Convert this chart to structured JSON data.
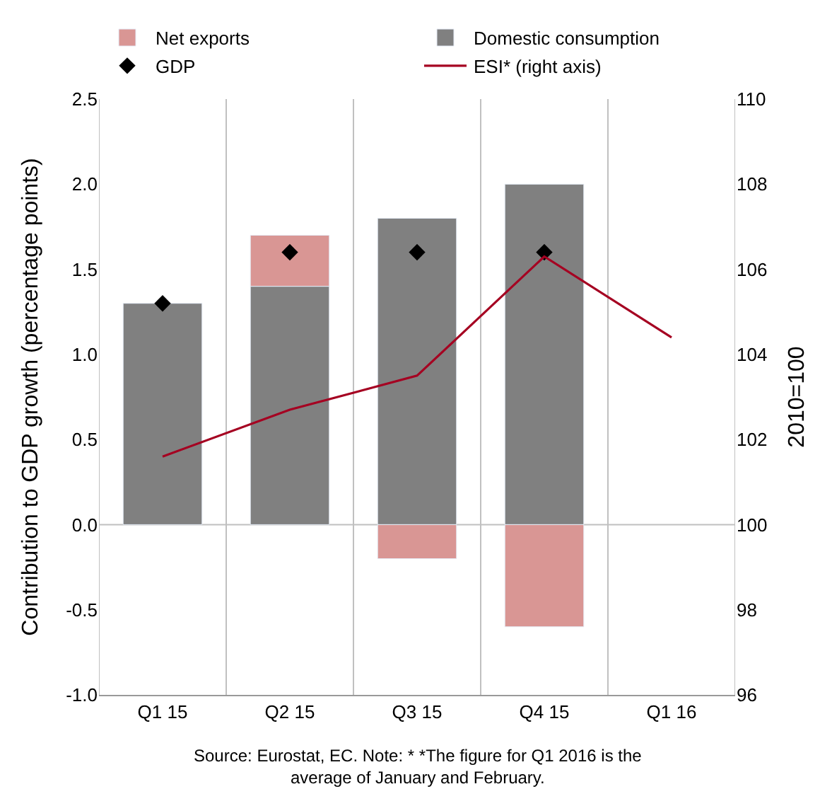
{
  "chart_data": {
    "type": "bar",
    "stacked": true,
    "categories": [
      "Q1 15",
      "Q2 15",
      "Q3 15",
      "Q4 15",
      "Q1 16"
    ],
    "ylabel": "Contribution to GDP growth (percentage points)",
    "y2label": "2010=100",
    "series": [
      {
        "name": "Domestic consumption",
        "color": "#808080",
        "values": [
          1.3,
          1.4,
          1.8,
          2.0,
          null
        ]
      },
      {
        "name": "Net exports",
        "color": "#d99694",
        "values": [
          null,
          0.3,
          -0.2,
          -0.6,
          null
        ]
      },
      {
        "name": "GDP",
        "color": "#000000",
        "type": "scatter",
        "marker": "diamond",
        "values": [
          1.3,
          1.6,
          1.6,
          1.6,
          null
        ]
      },
      {
        "name": "ESI* (right axis)",
        "color": "#a50021",
        "type": "line",
        "axis": "y2",
        "values": [
          101.6,
          102.7,
          103.5,
          106.3,
          104.4
        ]
      }
    ],
    "ylim": [
      -1.0,
      2.5
    ],
    "yticks": [
      {
        "value": -1,
        "label": "-1.0"
      },
      {
        "value": -0.5,
        "label": "-0.5"
      },
      {
        "value": 0,
        "label": "0.0"
      },
      {
        "value": 0.5,
        "label": "0.5"
      },
      {
        "value": 1,
        "label": "1.0"
      },
      {
        "value": 1.5,
        "label": "1.5"
      },
      {
        "value": 2,
        "label": "2.0"
      },
      {
        "value": 2.5,
        "label": "2.5"
      }
    ],
    "y2lim": [
      96,
      110
    ],
    "y2ticks": [
      96,
      98,
      100,
      102,
      104,
      106,
      108,
      110
    ],
    "grid": "x",
    "legend": "top",
    "ref_lines": [
      {
        "axis": "y",
        "value": 0,
        "color": "#c0c0c0"
      }
    ],
    "annotations": [
      "Source: Eurostat, EC. Note: * *The figure for Q1 2016 is the\naverage of January and February."
    ]
  }
}
